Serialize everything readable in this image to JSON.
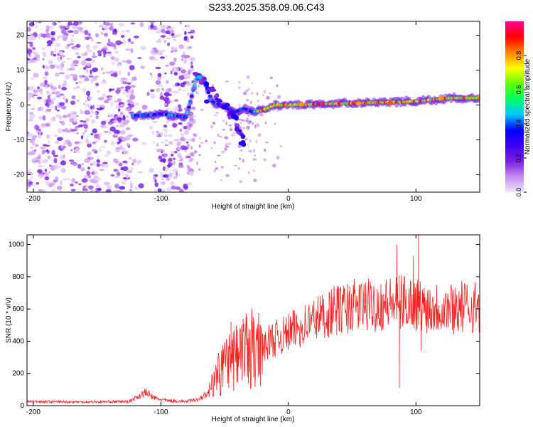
{
  "title": "S233.2025.358.09.06.C43",
  "chart_data": [
    {
      "type": "heatmap",
      "xlabel": "Height of straight line (km)",
      "ylabel": "Frequency (Hz)",
      "xlim": [
        -205,
        150
      ],
      "ylim": [
        -25,
        24
      ],
      "xticks": [
        -200,
        -100,
        0,
        100
      ],
      "xtick_labels": [
        "-200",
        "-100",
        "0",
        "100"
      ],
      "yticks": [
        -20,
        -10,
        0,
        10,
        20
      ],
      "ytick_labels": [
        "-20",
        "-10",
        "0",
        "10",
        "20"
      ],
      "colorbar": {
        "label": "Normalized spectral amplitude",
        "range": [
          0,
          1
        ],
        "ticks": [
          0,
          0.2,
          0.4,
          0.6,
          0.8
        ],
        "tick_labels": [
          "0.0",
          "0.2",
          "0.4",
          "0.6",
          "0.8"
        ],
        "colors": [
          "#f0e6ff",
          "#c58af0",
          "#7a1ee0",
          "#3c00f0",
          "#0000ff",
          "#00c8ff",
          "#00ff64",
          "#64ff00",
          "#ffff00",
          "#ff8000",
          "#ff0000",
          "#ff0096"
        ]
      },
      "ridge": [
        [
          -120,
          -3
        ],
        [
          -110,
          -3
        ],
        [
          -100,
          -2.5
        ],
        [
          -90,
          -3
        ],
        [
          -80,
          -3.5
        ],
        [
          -72,
          8
        ],
        [
          -66,
          7
        ],
        [
          -60,
          1
        ],
        [
          -50,
          -0.5
        ],
        [
          -42,
          -2
        ],
        [
          -35,
          -1
        ],
        [
          -28,
          -2
        ],
        [
          -20,
          -1.5
        ],
        [
          -10,
          0
        ],
        [
          0,
          0
        ],
        [
          25,
          0.3
        ],
        [
          50,
          0.5
        ],
        [
          75,
          0.8
        ],
        [
          100,
          1
        ],
        [
          125,
          2
        ],
        [
          150,
          2
        ]
      ],
      "branch": [
        [
          -70,
          8
        ],
        [
          -60,
          4
        ],
        [
          -50,
          -1
        ],
        [
          -42,
          -4
        ],
        [
          -36,
          -9
        ],
        [
          -34,
          -11
        ]
      ]
    },
    {
      "type": "line",
      "xlabel": "Height of straight line (km)",
      "ylabel": "SNR (10 * v/v)",
      "xlim": [
        -205,
        150
      ],
      "ylim": [
        0,
        1060
      ],
      "xticks": [
        -200,
        -100,
        0,
        100
      ],
      "xtick_labels": [
        "-200",
        "-100",
        "0",
        "100"
      ],
      "yticks": [
        0,
        200,
        400,
        600,
        800,
        1000
      ],
      "ytick_labels": [
        "0",
        "200",
        "400",
        "600",
        "800",
        "1000"
      ],
      "color": "#ff2020",
      "trend": [
        [
          -205,
          25
        ],
        [
          -160,
          22
        ],
        [
          -125,
          25
        ],
        [
          -112,
          80
        ],
        [
          -105,
          45
        ],
        [
          -95,
          30
        ],
        [
          -80,
          25
        ],
        [
          -70,
          40
        ],
        [
          -62,
          80
        ],
        [
          -55,
          180
        ],
        [
          -45,
          260
        ],
        [
          -35,
          300
        ],
        [
          -25,
          330
        ],
        [
          -15,
          390
        ],
        [
          -5,
          420
        ],
        [
          5,
          460
        ],
        [
          20,
          520
        ],
        [
          35,
          570
        ],
        [
          50,
          600
        ],
        [
          70,
          610
        ],
        [
          85,
          620
        ],
        [
          95,
          630
        ],
        [
          105,
          600
        ],
        [
          125,
          590
        ],
        [
          150,
          600
        ]
      ],
      "spikes": [
        [
          -45,
          520
        ],
        [
          -40,
          470
        ],
        [
          -30,
          470
        ],
        [
          -22,
          500
        ],
        [
          20,
          650
        ],
        [
          38,
          720
        ],
        [
          48,
          740
        ],
        [
          85,
          1000
        ],
        [
          87,
          110
        ],
        [
          98,
          930
        ],
        [
          102,
          1060
        ],
        [
          104,
          340
        ],
        [
          150,
          660
        ]
      ]
    }
  ]
}
